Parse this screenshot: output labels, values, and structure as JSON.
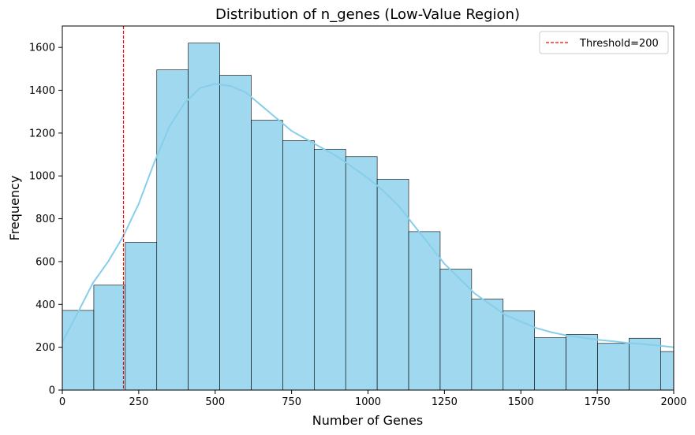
{
  "chart_data": {
    "type": "bar",
    "title": "Distribution of n_genes (Low-Value Region)",
    "xlabel": "Number of Genes",
    "ylabel": "Frequency",
    "xlim": [
      0,
      2000
    ],
    "ylim": [
      0,
      1700
    ],
    "xticks": [
      0,
      250,
      500,
      750,
      1000,
      1250,
      1500,
      1750,
      2000
    ],
    "yticks": [
      0,
      200,
      400,
      600,
      800,
      1000,
      1200,
      1400,
      1600
    ],
    "bin_edges": [
      0,
      103,
      206,
      309,
      412,
      515,
      618,
      721,
      824,
      927,
      1030,
      1133,
      1236,
      1339,
      1442,
      1545,
      1648,
      1751,
      1854,
      1957,
      2000
    ],
    "values": [
      372,
      490,
      690,
      1495,
      1620,
      1470,
      1260,
      1165,
      1125,
      1090,
      985,
      740,
      565,
      425,
      370,
      245,
      260,
      218,
      242,
      180
    ],
    "kde": {
      "x": [
        0,
        50,
        100,
        150,
        200,
        250,
        300,
        350,
        400,
        450,
        500,
        550,
        600,
        650,
        700,
        750,
        800,
        850,
        900,
        950,
        1000,
        1050,
        1100,
        1150,
        1200,
        1250,
        1300,
        1350,
        1400,
        1450,
        1500,
        1550,
        1600,
        1650,
        1700,
        1750,
        1800,
        1850,
        1900,
        1950,
        2000
      ],
      "y": [
        225,
        360,
        500,
        600,
        720,
        870,
        1060,
        1230,
        1340,
        1410,
        1430,
        1420,
        1390,
        1330,
        1270,
        1210,
        1170,
        1130,
        1090,
        1040,
        990,
        930,
        860,
        770,
        680,
        590,
        520,
        450,
        400,
        350,
        320,
        290,
        270,
        255,
        245,
        235,
        228,
        220,
        215,
        208,
        200
      ]
    },
    "threshold": {
      "value": 200,
      "label": "Threshold=200"
    },
    "legend_position": "top-right",
    "bar_color": "#87ceeb",
    "bar_edge_color": "#000000",
    "kde_color": "#87ceeb",
    "threshold_color": "#ff0000"
  }
}
